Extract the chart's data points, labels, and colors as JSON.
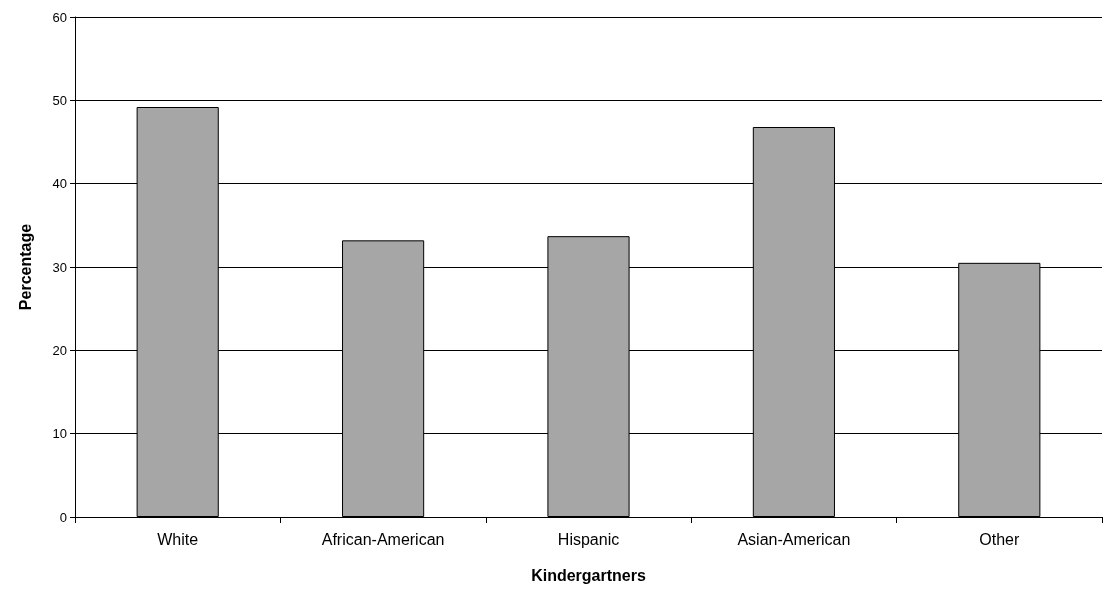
{
  "chart_data": {
    "type": "bar",
    "xlabel": "Kindergartners",
    "ylabel": "Percentage",
    "categories": [
      "White",
      "African-American",
      "Hispanic",
      "Asian-American",
      "Other"
    ],
    "values": [
      49.2,
      33.2,
      33.7,
      46.8,
      30.5
    ],
    "color": "#a6a6a6",
    "ylim": [
      0,
      60
    ],
    "yticks": [
      0,
      10,
      20,
      30,
      40,
      50,
      60
    ],
    "grid": "y"
  }
}
